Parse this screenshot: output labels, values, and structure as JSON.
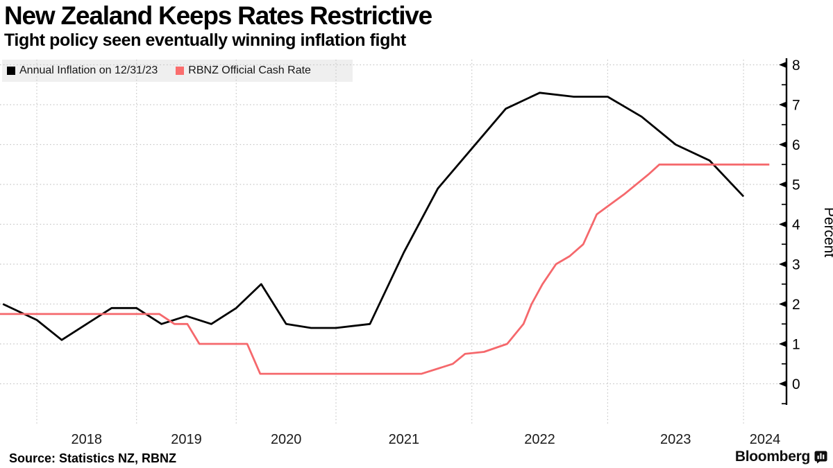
{
  "header": {
    "title": "New Zealand Keeps Rates Restrictive",
    "subtitle": "Tight policy seen eventually winning inflation fight"
  },
  "legend": {
    "items": [
      {
        "label": "Annual Inflation on 12/31/23",
        "color": "#000000"
      },
      {
        "label": "RBNZ Official Cash Rate",
        "color": "#fa6d6d"
      }
    ]
  },
  "footer": {
    "source": "Source: Statistics NZ, RBNZ",
    "brand": "Bloomberg"
  },
  "chart_data": {
    "type": "line",
    "title": "New Zealand Keeps Rates Restrictive",
    "subtitle": "Tight policy seen eventually winning inflation fight",
    "xlabel": "",
    "ylabel": "Percent",
    "ylim": [
      -0.75,
      8.4
    ],
    "yticks": [
      0,
      1,
      2,
      3,
      4,
      5,
      6,
      7,
      8
    ],
    "x_gridline_years": [
      2018,
      2019,
      2020,
      2021,
      2022,
      2023,
      2024
    ],
    "x_year_labels": [
      "2018",
      "2019",
      "2020",
      "2021",
      "2022",
      "2023",
      "2024"
    ],
    "grid": "dotted",
    "legend_position": "top-left",
    "gridline_color": "#c7c7c7",
    "series": [
      {
        "name": "Annual Inflation on 12/31/23",
        "color": "#000000",
        "points": [
          [
            2017.66,
            2.0
          ],
          [
            2018.0,
            1.6
          ],
          [
            2018.25,
            1.1
          ],
          [
            2018.5,
            1.5
          ],
          [
            2018.75,
            1.9
          ],
          [
            2019.0,
            1.9
          ],
          [
            2019.25,
            1.5
          ],
          [
            2019.5,
            1.7
          ],
          [
            2019.75,
            1.5
          ],
          [
            2020.0,
            1.9
          ],
          [
            2020.25,
            2.5
          ],
          [
            2020.5,
            1.5
          ],
          [
            2020.75,
            1.4
          ],
          [
            2021.0,
            1.4
          ],
          [
            2021.25,
            1.5
          ],
          [
            2021.5,
            3.3
          ],
          [
            2021.75,
            4.9
          ],
          [
            2022.0,
            5.9
          ],
          [
            2022.25,
            6.9
          ],
          [
            2022.5,
            7.3
          ],
          [
            2022.75,
            7.2
          ],
          [
            2023.0,
            7.2
          ],
          [
            2023.25,
            6.7
          ],
          [
            2023.5,
            6.0
          ],
          [
            2023.75,
            5.6
          ],
          [
            2024.0,
            4.7
          ]
        ]
      },
      {
        "name": "RBNZ Official Cash Rate",
        "color": "#f5686c",
        "points": [
          [
            2017.63,
            1.75
          ],
          [
            2019.23,
            1.75
          ],
          [
            2019.38,
            1.5
          ],
          [
            2019.51,
            1.5
          ],
          [
            2019.63,
            1.0
          ],
          [
            2020.11,
            1.0
          ],
          [
            2020.24,
            0.25
          ],
          [
            2021.63,
            0.25
          ],
          [
            2021.86,
            0.5
          ],
          [
            2021.95,
            0.75
          ],
          [
            2022.09,
            0.8
          ],
          [
            2022.26,
            1.0
          ],
          [
            2022.38,
            1.5
          ],
          [
            2022.44,
            2.0
          ],
          [
            2022.52,
            2.5
          ],
          [
            2022.62,
            3.0
          ],
          [
            2022.72,
            3.2
          ],
          [
            2022.82,
            3.5
          ],
          [
            2022.92,
            4.25
          ],
          [
            2023.12,
            4.75
          ],
          [
            2023.3,
            5.25
          ],
          [
            2023.38,
            5.5
          ],
          [
            2024.19,
            5.5
          ]
        ]
      }
    ]
  }
}
